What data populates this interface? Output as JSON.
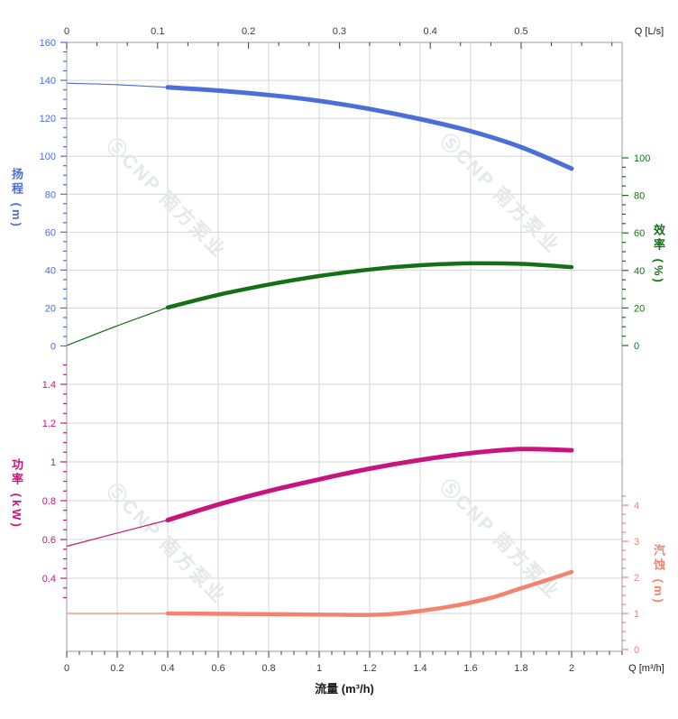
{
  "watermark": {
    "logo_glyph": "Ⓢ",
    "text": "CNP 南方泵业",
    "color": "#e4e7ec"
  },
  "chart_data": {
    "type": "line",
    "title": "",
    "grid": true,
    "colors": {
      "head": "#4a6fd8",
      "efficiency": "#157015",
      "power": "#c9137f",
      "npsh": "#f4826f",
      "gridline": "#d6d6d6",
      "border": "#9b9b9b",
      "xtick_label": "#3a3a3a"
    },
    "axes": {
      "x_bottom": {
        "title": "流量 (m³/h)",
        "unit_label": "Q [m³/h]",
        "range": [
          0,
          2.2
        ],
        "tick_values": [
          0,
          0.2,
          0.4,
          0.6,
          0.8,
          1,
          1.2,
          1.4,
          1.6,
          1.8,
          2
        ],
        "tick_labels": [
          "0",
          "0.2",
          "0.4",
          "0.6",
          "0.8",
          "1",
          "1.2",
          "1.4",
          "1.6",
          "1.8",
          "2"
        ],
        "minor_step": 0.05
      },
      "x_top": {
        "unit_label": "Q [L/s]",
        "range": [
          0,
          0.611
        ],
        "unit_factor_to_m3h": 3.6,
        "tick_values": [
          0,
          0.1,
          0.2,
          0.3,
          0.4,
          0.5
        ],
        "tick_labels": [
          "0",
          "0.1",
          "0.2",
          "0.3",
          "0.4",
          "0.5"
        ],
        "minor_step": 0.03333
      },
      "head": {
        "title": "扬程 (m)",
        "side": "left",
        "color": "#4a6fd8",
        "range": [
          0,
          160
        ],
        "tick_values": [
          0,
          20,
          40,
          60,
          80,
          100,
          120,
          140,
          160
        ],
        "tick_labels": [
          "0",
          "20",
          "40",
          "60",
          "80",
          "100",
          "120",
          "140",
          "160"
        ],
        "minor_step": 5,
        "grid_values": [
          20,
          40,
          60,
          80,
          100,
          120,
          140,
          160
        ]
      },
      "eff": {
        "title": "效率 (%)",
        "side": "right",
        "color": "#157015",
        "range": [
          0,
          100
        ],
        "tick_values": [
          0,
          20,
          40,
          60,
          80,
          100
        ],
        "tick_labels": [
          "0",
          "20",
          "40",
          "60",
          "80",
          "100"
        ],
        "minor_step": 5,
        "grid_values": []
      },
      "power": {
        "title": "功率 (kW)",
        "side": "left",
        "color": "#c9137f",
        "range": [
          0.3,
          1.5
        ],
        "tick_values": [
          0.4,
          0.6,
          0.8,
          1,
          1.2,
          1.4
        ],
        "tick_labels": [
          "0.4",
          "0.6",
          "0.8",
          "1",
          "1.2",
          "1.4"
        ],
        "minor_step": 0.05,
        "grid_values": [
          0.4,
          0.6,
          0.8,
          1,
          1.2,
          1.4
        ]
      },
      "npsh": {
        "title": "汽蚀 (m)",
        "side": "right",
        "color": "#f4826f",
        "range": [
          0,
          4.25
        ],
        "tick_values": [
          0,
          1,
          2,
          3,
          4
        ],
        "tick_labels": [
          "0",
          "1",
          "2",
          "3",
          "4"
        ],
        "minor_step": 0.25,
        "grid_values": [
          1
        ]
      }
    },
    "series": [
      {
        "id": "head",
        "name": "扬程",
        "axis": "head",
        "color": "#4a6fd8",
        "width": 5,
        "thin_until": 0.4,
        "points": [
          [
            0,
            138.5
          ],
          [
            0.2,
            137.7
          ],
          [
            0.4,
            136.3
          ],
          [
            0.6,
            134.6
          ],
          [
            0.8,
            132.3
          ],
          [
            1,
            129.2
          ],
          [
            1.2,
            124.9
          ],
          [
            1.4,
            119.6
          ],
          [
            1.6,
            113.2
          ],
          [
            1.8,
            104.8
          ],
          [
            2,
            93.5
          ]
        ]
      },
      {
        "id": "efficiency",
        "name": "效率",
        "axis": "eff",
        "color": "#157015",
        "width": 4.5,
        "thin_until": 0.4,
        "points": [
          [
            0,
            0
          ],
          [
            0.2,
            10.5
          ],
          [
            0.4,
            20.3
          ],
          [
            0.6,
            27
          ],
          [
            0.8,
            32.5
          ],
          [
            1,
            37
          ],
          [
            1.2,
            40.5
          ],
          [
            1.4,
            42.8
          ],
          [
            1.6,
            43.8
          ],
          [
            1.8,
            43.5
          ],
          [
            2,
            41.8
          ]
        ]
      },
      {
        "id": "power",
        "name": "功率",
        "axis": "power",
        "color": "#c9137f",
        "width": 5,
        "thin_until": 0.4,
        "points": [
          [
            0,
            0.565
          ],
          [
            0.2,
            0.633
          ],
          [
            0.4,
            0.7
          ],
          [
            0.6,
            0.78
          ],
          [
            0.8,
            0.85
          ],
          [
            1,
            0.91
          ],
          [
            1.2,
            0.965
          ],
          [
            1.4,
            1.01
          ],
          [
            1.6,
            1.045
          ],
          [
            1.8,
            1.066
          ],
          [
            2,
            1.06
          ]
        ]
      },
      {
        "id": "npsh",
        "name": "汽蚀",
        "axis": "npsh",
        "color": "#f4826f",
        "width": 4.5,
        "thin_until": 0.4,
        "points": [
          [
            0,
            1
          ],
          [
            0.2,
            1
          ],
          [
            0.4,
            1
          ],
          [
            0.6,
            0.99
          ],
          [
            0.8,
            0.98
          ],
          [
            1,
            0.97
          ],
          [
            1.2,
            0.96
          ],
          [
            1.3,
            0.99
          ],
          [
            1.4,
            1.07
          ],
          [
            1.5,
            1.17
          ],
          [
            1.6,
            1.3
          ],
          [
            1.7,
            1.47
          ],
          [
            1.8,
            1.7
          ],
          [
            1.9,
            1.92
          ],
          [
            2,
            2.15
          ]
        ]
      }
    ]
  }
}
